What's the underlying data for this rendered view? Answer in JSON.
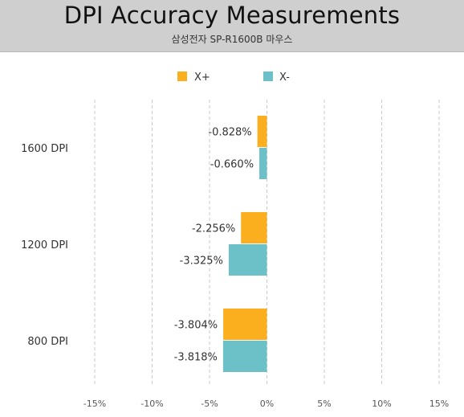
{
  "header": {
    "title": "DPI Accuracy Measurements",
    "subtitle": "삼성전자 SP-R1600B 마우스"
  },
  "chart_data": {
    "type": "bar",
    "orientation": "horizontal",
    "title": "DPI Accuracy Measurements",
    "subtitle": "삼성전자 SP-R1600B 마우스",
    "categories": [
      "1600 DPI",
      "1200 DPI",
      "800 DPI"
    ],
    "series": [
      {
        "name": "X+",
        "color": "#FBAE1E",
        "values": [
          -0.828,
          -2.256,
          -3.804
        ],
        "labels": [
          "-0.828%",
          "-2.256%",
          "-3.804%"
        ]
      },
      {
        "name": "X-",
        "color": "#6CC0C8",
        "values": [
          -0.66,
          -3.325,
          -3.818
        ],
        "labels": [
          "-0.660%",
          "-3.325%",
          "-3.818%"
        ]
      }
    ],
    "xlim": [
      -15,
      15
    ],
    "xticks": [
      -15,
      -10,
      -5,
      0,
      5,
      10,
      15
    ],
    "xtick_labels": [
      "-15%",
      "-10%",
      "-5%",
      "0%",
      "5%",
      "10%",
      "15%"
    ],
    "grid": "vertical dashed",
    "legend": "top-center"
  }
}
